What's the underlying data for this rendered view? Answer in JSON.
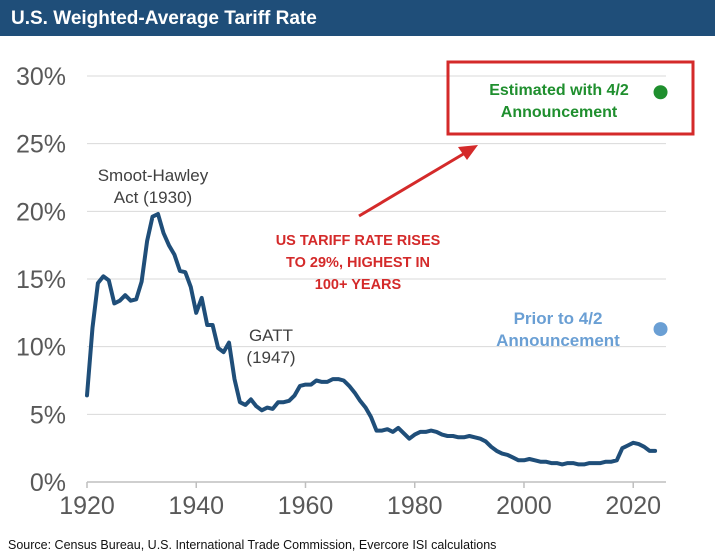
{
  "colors": {
    "title_bg": "#1f4e79",
    "line": "#1f4e79",
    "grid": "#d9d9d9",
    "axis_text": "#595959",
    "highlight_red": "#d42a2a",
    "estimate_green": "#1f8f2e",
    "prior_blue": "#6a9fd4"
  },
  "chart_data": {
    "type": "line",
    "title": "U.S. Weighted-Average Tariff Rate",
    "xlabel": "",
    "ylabel": "",
    "xlim": [
      1920,
      2026
    ],
    "ylim": [
      0,
      30
    ],
    "x_ticks": [
      1920,
      1940,
      1960,
      1980,
      2000,
      2020
    ],
    "y_ticks": [
      0,
      5,
      10,
      15,
      20,
      25,
      30
    ],
    "y_tick_labels": [
      "0%",
      "5%",
      "10%",
      "15%",
      "20%",
      "25%",
      "30%"
    ],
    "grid": true,
    "series": [
      {
        "name": "U.S. Weighted-Average Tariff Rate",
        "x": [
          1920,
          1921,
          1922,
          1923,
          1924,
          1925,
          1926,
          1927,
          1928,
          1929,
          1930,
          1931,
          1932,
          1933,
          1934,
          1935,
          1936,
          1937,
          1938,
          1939,
          1940,
          1941,
          1942,
          1943,
          1944,
          1945,
          1946,
          1947,
          1948,
          1949,
          1950,
          1951,
          1952,
          1953,
          1954,
          1955,
          1956,
          1957,
          1958,
          1959,
          1960,
          1961,
          1962,
          1963,
          1964,
          1965,
          1966,
          1967,
          1968,
          1969,
          1970,
          1971,
          1972,
          1973,
          1974,
          1975,
          1976,
          1977,
          1978,
          1979,
          1980,
          1981,
          1982,
          1983,
          1984,
          1985,
          1986,
          1987,
          1988,
          1989,
          1990,
          1991,
          1992,
          1993,
          1994,
          1995,
          1996,
          1997,
          1998,
          1999,
          2000,
          2001,
          2002,
          2003,
          2004,
          2005,
          2006,
          2007,
          2008,
          2009,
          2010,
          2011,
          2012,
          2013,
          2014,
          2015,
          2016,
          2017,
          2018,
          2019,
          2020,
          2021,
          2022,
          2023,
          2024
        ],
        "values": [
          6.4,
          11.4,
          14.7,
          15.2,
          14.9,
          13.2,
          13.4,
          13.8,
          13.4,
          13.5,
          14.8,
          17.8,
          19.6,
          19.8,
          18.4,
          17.5,
          16.8,
          15.6,
          15.5,
          14.4,
          12.5,
          13.6,
          11.6,
          11.6,
          9.9,
          9.6,
          10.3,
          7.6,
          5.9,
          5.7,
          6.1,
          5.6,
          5.3,
          5.5,
          5.4,
          5.9,
          5.9,
          6.0,
          6.4,
          7.1,
          7.2,
          7.2,
          7.5,
          7.4,
          7.4,
          7.6,
          7.6,
          7.5,
          7.1,
          6.6,
          6.0,
          5.5,
          4.8,
          3.8,
          3.8,
          3.9,
          3.7,
          4.0,
          3.6,
          3.2,
          3.5,
          3.7,
          3.7,
          3.8,
          3.7,
          3.5,
          3.4,
          3.4,
          3.3,
          3.3,
          3.4,
          3.3,
          3.2,
          3.0,
          2.6,
          2.3,
          2.1,
          2.0,
          1.8,
          1.6,
          1.6,
          1.7,
          1.6,
          1.5,
          1.5,
          1.4,
          1.4,
          1.3,
          1.4,
          1.4,
          1.3,
          1.3,
          1.4,
          1.4,
          1.4,
          1.5,
          1.5,
          1.6,
          2.5,
          2.7,
          2.9,
          2.8,
          2.6,
          2.3,
          2.3
        ]
      }
    ],
    "points": [
      {
        "name": "Estimated with 4/2 Announcement",
        "x": 2025,
        "value": 28.8
      },
      {
        "name": "Prior to 4/2 Announcement",
        "x": 2025,
        "value": 11.3
      }
    ],
    "annotations": {
      "smoot_line1": "Smoot-Hawley",
      "smoot_line2": "Act (1930)",
      "gatt_line1": "GATT",
      "gatt_line2": "(1947)",
      "callout_line1": "US TARIFF RATE RISES",
      "callout_line2": "TO 29%, HIGHEST IN",
      "callout_line3": "100+ YEARS",
      "estimate_line1": "Estimated with 4/2",
      "estimate_line2": "Announcement",
      "prior_line1": "Prior to 4/2",
      "prior_line2": "Announcement"
    }
  },
  "source": "Source: Census Bureau, U.S. International Trade Commission, Evercore ISI calculations"
}
